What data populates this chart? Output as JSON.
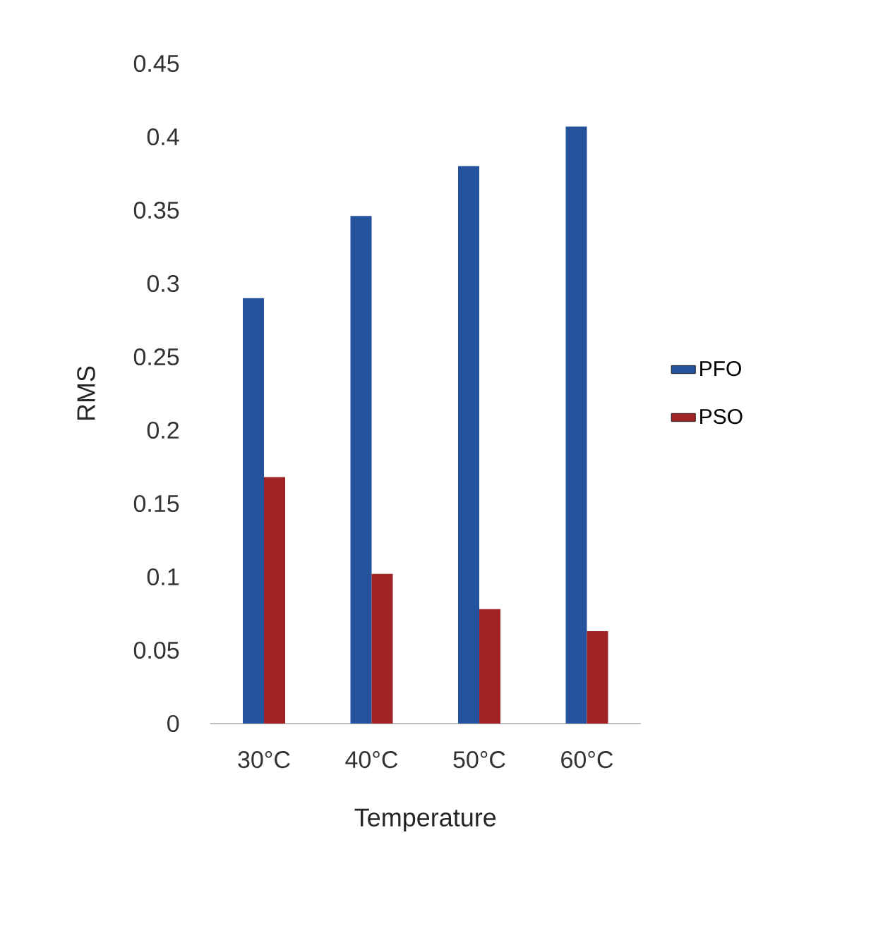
{
  "chart_data": {
    "type": "bar",
    "xlabel": "Temperature",
    "ylabel": "RMS",
    "categories": [
      "30°C",
      "40°C",
      "50°C",
      "60°C"
    ],
    "series": [
      {
        "name": "PFO",
        "color": "#24529b",
        "values": [
          0.29,
          0.346,
          0.38,
          0.407
        ]
      },
      {
        "name": "PSO",
        "color": "#a02424",
        "values": [
          0.168,
          0.102,
          0.078,
          0.063
        ]
      }
    ],
    "ylim": [
      0,
      0.45
    ],
    "yticks": [
      0,
      0.05,
      0.1,
      0.15,
      0.2,
      0.25,
      0.3,
      0.35,
      0.4,
      0.45
    ],
    "grid": false,
    "legend": "right"
  }
}
